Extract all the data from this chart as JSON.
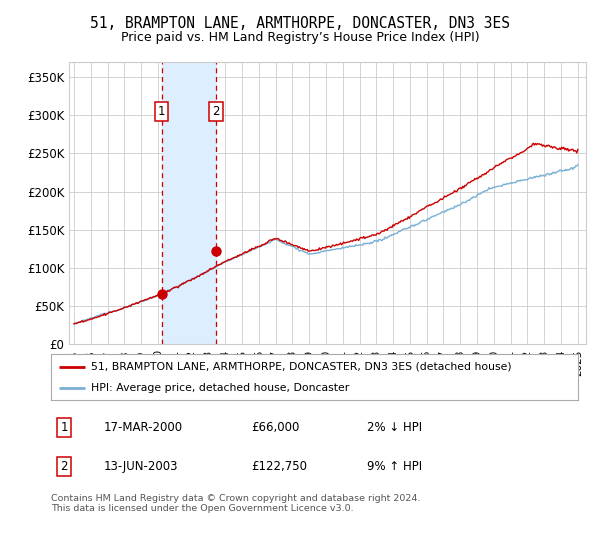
{
  "title": "51, BRAMPTON LANE, ARMTHORPE, DONCASTER, DN3 3ES",
  "subtitle": "Price paid vs. HM Land Registry’s House Price Index (HPI)",
  "title_fontsize": 10.5,
  "subtitle_fontsize": 9,
  "ylabel_ticks": [
    "£0",
    "£50K",
    "£100K",
    "£150K",
    "£200K",
    "£250K",
    "£300K",
    "£350K"
  ],
  "ytick_values": [
    0,
    50000,
    100000,
    150000,
    200000,
    250000,
    300000,
    350000
  ],
  "ylim": [
    0,
    370000
  ],
  "xlim_start": 1994.7,
  "xlim_end": 2025.5,
  "transaction1": {
    "date_label": "17-MAR-2000",
    "price": 66000,
    "x": 2000.21,
    "label": "1",
    "hpi_pct": "2% ↓ HPI"
  },
  "transaction2": {
    "date_label": "13-JUN-2003",
    "price": 122750,
    "x": 2003.45,
    "label": "2",
    "hpi_pct": "9% ↑ HPI"
  },
  "line_color_red": "#cc0000",
  "line_color_blue": "#7ab0d4",
  "shade_color": "#ddeeff",
  "grid_color": "#cccccc",
  "background_color": "#ffffff",
  "legend_line1": "51, BRAMPTON LANE, ARMTHORPE, DONCASTER, DN3 3ES (detached house)",
  "legend_line2": "HPI: Average price, detached house, Doncaster",
  "footer": "Contains HM Land Registry data © Crown copyright and database right 2024.\nThis data is licensed under the Open Government Licence v3.0.",
  "marker_box_color": "#cc0000",
  "num_points": 500
}
